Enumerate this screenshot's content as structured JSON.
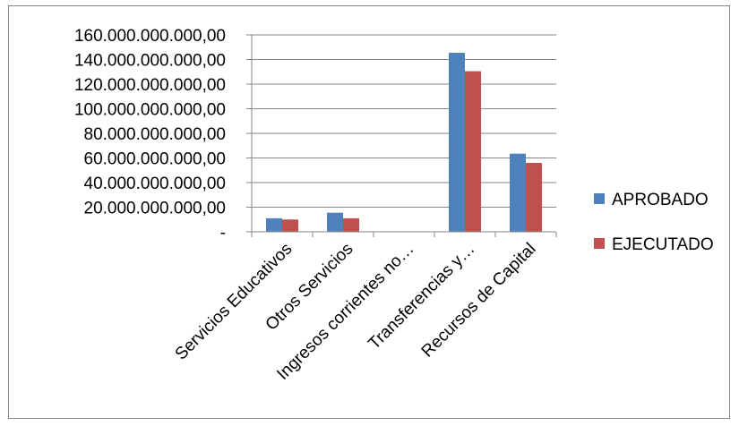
{
  "chart_data": {
    "type": "bar",
    "categories": [
      "Servicios Educativos",
      "Otros Servicios",
      "Ingresos corrientes no…",
      "Transferencias y…",
      "Recursos de Capital"
    ],
    "series": [
      {
        "name": "APROBADO",
        "color": "#4F81BD",
        "values": [
          11000000000,
          15500000000,
          300000000,
          145500000000,
          63500000000
        ]
      },
      {
        "name": "EJECUTADO",
        "color": "#C0504D",
        "values": [
          10000000000,
          11000000000,
          200000000,
          130500000000,
          56000000000
        ]
      }
    ],
    "ylim": [
      0,
      160000000000
    ],
    "yticks": [
      {
        "value": 0,
        "label": "-"
      },
      {
        "value": 20000000000,
        "label": "20.000.000.000,00"
      },
      {
        "value": 40000000000,
        "label": "40.000.000.000,00"
      },
      {
        "value": 60000000000,
        "label": "60.000.000.000,00"
      },
      {
        "value": 80000000000,
        "label": "80.000.000.000,00"
      },
      {
        "value": 100000000000,
        "label": "100.000.000.000,00"
      },
      {
        "value": 120000000000,
        "label": "120.000.000.000,00"
      },
      {
        "value": 140000000000,
        "label": "140.000.000.000,00"
      },
      {
        "value": 160000000000,
        "label": "160.000.000.000,00"
      }
    ],
    "grid": true,
    "legend_position": "right",
    "title": "",
    "xlabel": "",
    "ylabel": ""
  }
}
